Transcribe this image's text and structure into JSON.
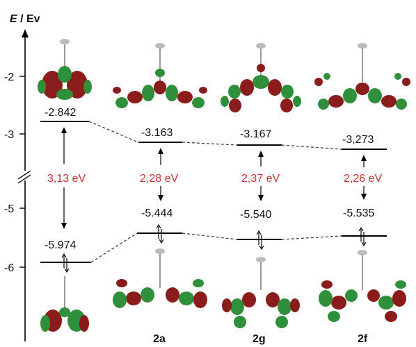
{
  "axis": {
    "label_italic": "E",
    "label_rest": " / Ev",
    "ticks": [
      "-2",
      "-3",
      "-5",
      "-6"
    ]
  },
  "compounds": [
    {
      "id": "ref",
      "name": "",
      "lumo": "-2.842",
      "homo": "-5.974",
      "gap": "3,13 eV"
    },
    {
      "id": "2a",
      "name": "2a",
      "lumo": "-3.163",
      "homo": "-5.444",
      "gap": "2,28 eV"
    },
    {
      "id": "2g",
      "name": "2g",
      "lumo": "-3.167",
      "homo": "-5.540",
      "gap": "2,37 eV"
    },
    {
      "id": "2f",
      "name": "2f",
      "lumo": "-3,273",
      "homo": "-5.535",
      "gap": "2,26 eV"
    }
  ],
  "colors": {
    "gap_text": "#c8322e",
    "orbital_red": "#8b1c1c",
    "orbital_green": "#2f8f3a"
  },
  "icons": [
    "energy-axis",
    "axis-break",
    "electron-pair-arrows",
    "molecular-orbital-lobes"
  ]
}
